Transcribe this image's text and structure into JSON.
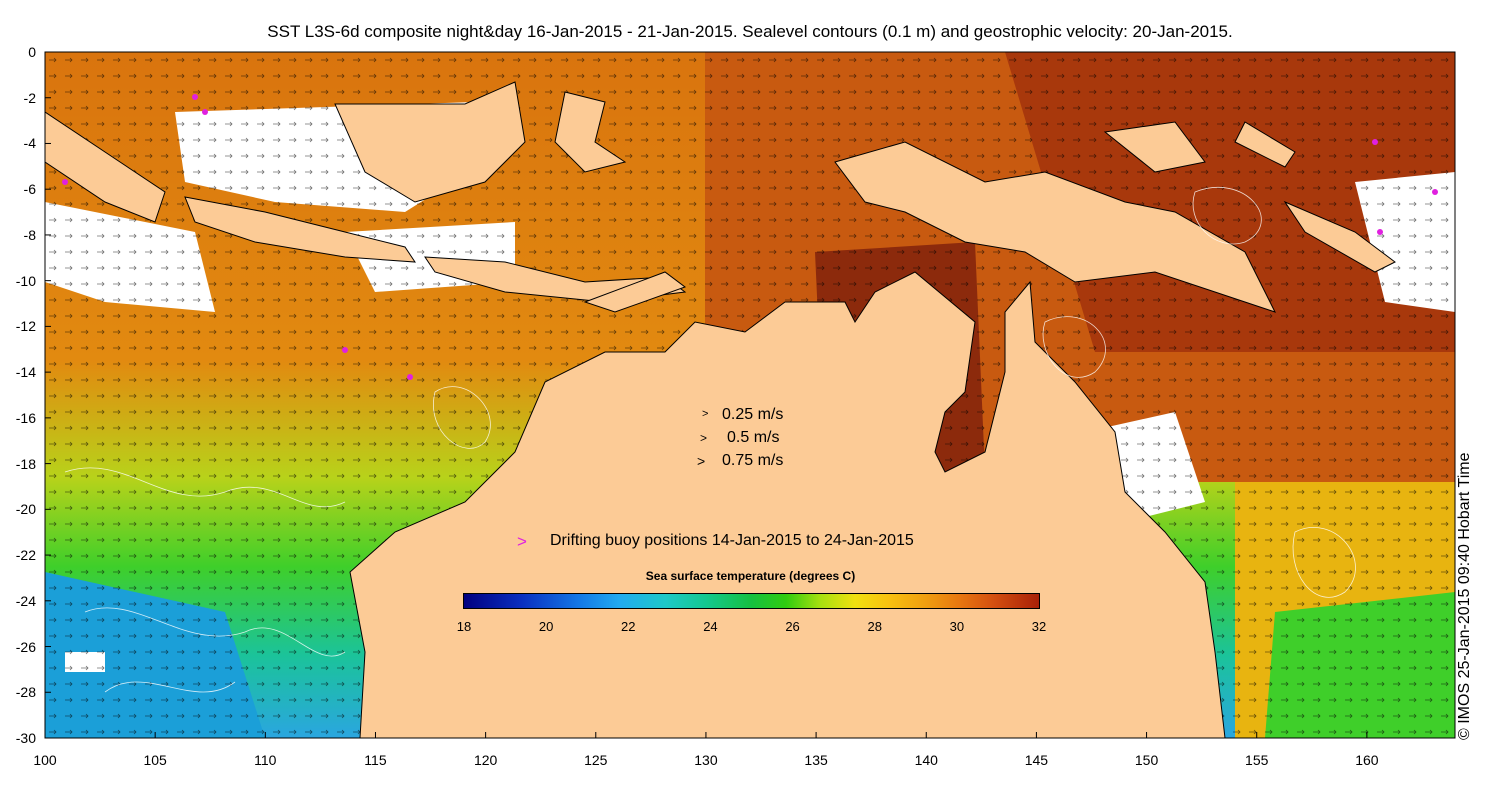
{
  "title": "SST L3S-6d composite night&day 16-Jan-2015 - 21-Jan-2015. Sealevel contours (0.1 m) and geostrophic velocity: 20-Jan-2015.",
  "credit": "© IMOS 25-Jan-2015 09:40 Hobart Time",
  "map": {
    "lon_range": [
      100,
      164
    ],
    "lat_range": [
      -30,
      0
    ],
    "x_ticks": [
      "100",
      "105",
      "110",
      "115",
      "120",
      "125",
      "130",
      "135",
      "140",
      "145",
      "150",
      "155",
      "160"
    ],
    "y_ticks": [
      "0",
      "-2",
      "-4",
      "-6",
      "-8",
      "-10",
      "-12",
      "-14",
      "-16",
      "-18",
      "-20",
      "-22",
      "-24",
      "-26",
      "-28",
      "-30"
    ],
    "colors": {
      "land": "#fccb96",
      "coast": "#000000",
      "ocean_warm": "#d66a12",
      "ocean_hot": "#a8330a",
      "ocean_mid": "#e88f0c",
      "ocean_cool": "#3fcf2a",
      "ocean_cold": "#20b7c8",
      "cloud": "#ffffff",
      "buoy": "#e020e0",
      "contour": "#ffffff"
    }
  },
  "velocity_legend": [
    {
      "label": "0.25 m/s",
      "symbol": ">"
    },
    {
      "label": "0.5 m/s",
      "symbol": ">"
    },
    {
      "label": "0.75 m/s",
      "symbol": ">"
    }
  ],
  "buoy_legend": {
    "symbol": ">",
    "label": "Drifting buoy positions 14-Jan-2015 to 24-Jan-2015"
  },
  "colorbar": {
    "title": "Sea surface temperature (degrees C)",
    "range": [
      18,
      32
    ],
    "ticks": [
      "18",
      "20",
      "22",
      "24",
      "26",
      "28",
      "30",
      "32"
    ]
  }
}
